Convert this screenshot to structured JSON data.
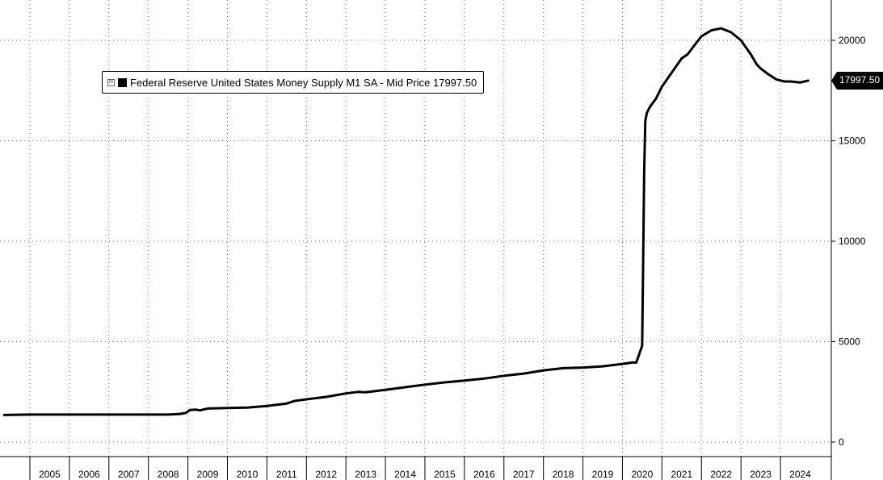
{
  "chart_data": {
    "type": "line",
    "legend": {
      "text": "Federal Reserve United States Money Supply M1 SA - Mid Price 17997.50",
      "toggle_glyph": "⊟",
      "placement": "top-left"
    },
    "last_value_label": "17997.50",
    "ylim": [
      -500,
      22000
    ],
    "y_ticks": [
      0,
      5000,
      10000,
      15000,
      20000
    ],
    "y_tick_labels": [
      "0",
      "5000",
      "10000",
      "15000",
      "20000"
    ],
    "xlim": [
      2003.85,
      2024.6
    ],
    "x_ticks": [
      "2005",
      "2006",
      "2007",
      "2008",
      "2009",
      "2010",
      "2011",
      "2012",
      "2013",
      "2014",
      "2015",
      "2016",
      "2017",
      "2018",
      "2019",
      "2020",
      "2021",
      "2022",
      "2023",
      "2024"
    ],
    "grid": true,
    "series": [
      {
        "color": "#000000",
        "x": [
          2003.85,
          2004.5,
          2005.0,
          2006.0,
          2007.0,
          2008.0,
          2008.3,
          2008.45,
          2008.55,
          2008.7,
          2008.8,
          2009.0,
          2009.5,
          2010.0,
          2010.5,
          2011.0,
          2011.2,
          2011.5,
          2012.0,
          2012.5,
          2012.8,
          2013.0,
          2013.5,
          2014.0,
          2014.5,
          2015.0,
          2015.5,
          2016.0,
          2016.5,
          2017.0,
          2017.5,
          2018.0,
          2018.5,
          2019.0,
          2019.5,
          2019.75,
          2019.85,
          2020.0,
          2020.05,
          2020.08,
          2020.12,
          2020.2,
          2020.35,
          2020.5,
          2020.75,
          2021.0,
          2021.15,
          2021.3,
          2021.5,
          2021.75,
          2022.0,
          2022.25,
          2022.5,
          2022.75,
          2022.9,
          2023.0,
          2023.2,
          2023.4,
          2023.6,
          2023.75,
          2024.0,
          2024.2
        ],
        "values": [
          1350,
          1370,
          1370,
          1370,
          1370,
          1370,
          1400,
          1450,
          1600,
          1620,
          1580,
          1670,
          1700,
          1720,
          1800,
          1920,
          2050,
          2130,
          2250,
          2420,
          2500,
          2480,
          2600,
          2730,
          2860,
          2970,
          3060,
          3160,
          3300,
          3410,
          3570,
          3680,
          3710,
          3770,
          3890,
          3960,
          3960,
          4800,
          13500,
          16000,
          16400,
          16700,
          17100,
          17700,
          18400,
          19100,
          19300,
          19700,
          20200,
          20500,
          20600,
          20400,
          20000,
          19300,
          18800,
          18600,
          18300,
          18050,
          17950,
          17950,
          17900,
          17997.5
        ]
      }
    ]
  }
}
